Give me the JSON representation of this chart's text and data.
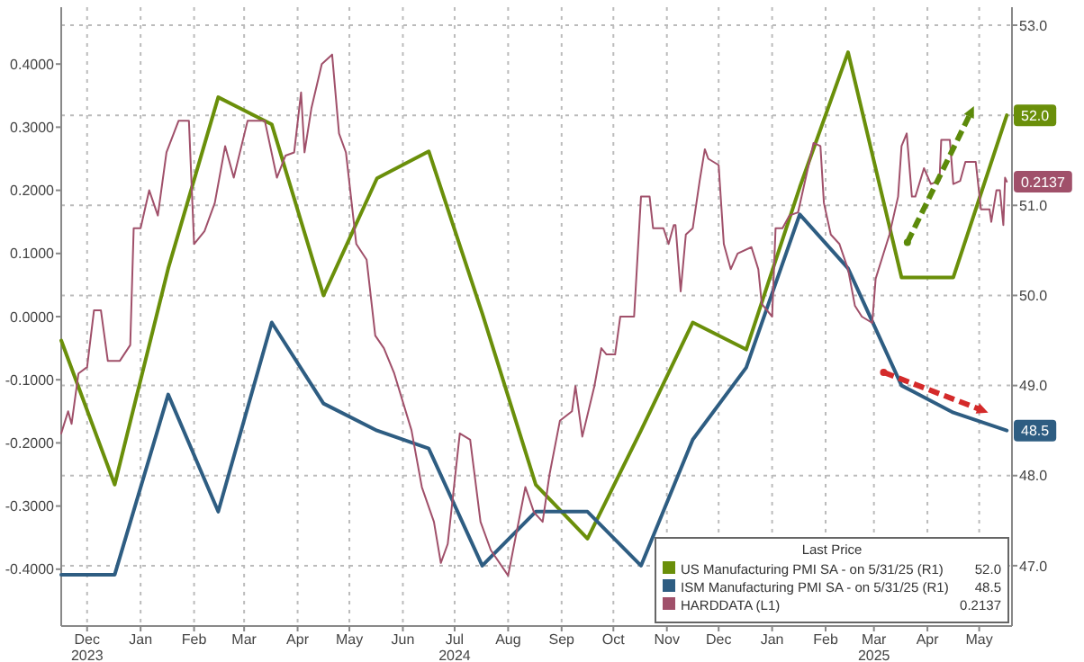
{
  "chart_data": {
    "type": "line",
    "legend_title": "Last Price",
    "annotations": [
      "52.0",
      "48.5",
      "0.2137"
    ],
    "legend": "bottom right",
    "grid": true,
    "marker": "none",
    "line_style": "solid",
    "xlim": [
      "2023-11-30",
      "2025-06-03"
    ],
    "xticks": [
      {
        "value": "2023-12-15",
        "label": "Dec\n2023"
      },
      {
        "value": "2024-01-15",
        "label": "Jan"
      },
      {
        "value": "2024-02-15",
        "label": "Feb"
      },
      {
        "value": "2024-03-15",
        "label": "Mar"
      },
      {
        "value": "2024-04-15",
        "label": "Apr"
      },
      {
        "value": "2024-05-15",
        "label": "May"
      },
      {
        "value": "2024-06-15",
        "label": "Jun"
      },
      {
        "value": "2024-07-15",
        "label": "Jul\n2024"
      },
      {
        "value": "2024-08-15",
        "label": "Aug"
      },
      {
        "value": "2024-09-15",
        "label": "Sep"
      },
      {
        "value": "2024-10-15",
        "label": "Oct"
      },
      {
        "value": "2024-11-15",
        "label": "Nov"
      },
      {
        "value": "2024-12-15",
        "label": "Dec"
      },
      {
        "value": "2025-01-15",
        "label": "Jan"
      },
      {
        "value": "2025-02-15",
        "label": "Feb"
      },
      {
        "value": "2025-03-15",
        "label": "Mar\n2025"
      },
      {
        "value": "2025-04-15",
        "label": "Apr"
      },
      {
        "value": "2025-05-15",
        "label": "May"
      }
    ],
    "ylim": [
      -0.49,
      0.49
    ],
    "yticks": [
      {
        "value": -0.4,
        "label": "-0.4000"
      },
      {
        "value": -0.3,
        "label": "-0.3000"
      },
      {
        "value": -0.2,
        "label": "-0.2000"
      },
      {
        "value": -0.1,
        "label": "-0.1000"
      },
      {
        "value": 0,
        "label": "0.0000"
      },
      {
        "value": 0.1,
        "label": "0.1000"
      },
      {
        "value": 0.2,
        "label": "0.2000"
      },
      {
        "value": 0.3,
        "label": "0.3000"
      },
      {
        "value": 0.4,
        "label": "0.4000"
      }
    ],
    "y2lim": [
      46.33,
      53.2
    ],
    "y2ticks": [
      {
        "value": 47,
        "label": "47.0"
      },
      {
        "value": 48,
        "label": "48.0"
      },
      {
        "value": 49,
        "label": "49.0"
      },
      {
        "value": 50,
        "label": "50.0"
      },
      {
        "value": 51,
        "label": "51.0"
      },
      {
        "value": 52,
        "label": null
      },
      {
        "value": 53,
        "label": "53.0"
      }
    ],
    "series": [
      {
        "name": "US Manufacturing PMI SA - on 5/31/25 (R1)",
        "color": "#6a8f0a",
        "axis": "y2",
        "x": [
          "2023-11-30",
          "2023-12-31",
          "2024-01-31",
          "2024-02-29",
          "2024-03-31",
          "2024-04-30",
          "2024-05-31",
          "2024-06-30",
          "2024-07-31",
          "2024-08-31",
          "2024-09-30",
          "2024-10-31",
          "2024-11-30",
          "2024-12-31",
          "2025-01-31",
          "2025-02-28",
          "2025-03-31",
          "2025-04-30",
          "2025-05-31"
        ],
        "values": [
          49.5,
          47.9,
          50.3,
          52.2,
          51.9,
          50.0,
          51.3,
          51.6,
          49.8,
          47.9,
          47.3,
          48.5,
          49.7,
          49.4,
          51.2,
          52.7,
          50.2,
          50.2,
          52.0
        ],
        "value_labels": [
          null,
          null,
          null,
          null,
          null,
          null,
          null,
          null,
          null,
          null,
          null,
          null,
          null,
          null,
          null,
          null,
          null,
          null,
          "52.0"
        ]
      },
      {
        "name": "ISM Manufacturing PMI SA - on 5/31/25 (R1)",
        "color": "#2e5d82",
        "axis": "y2",
        "x": [
          "2023-11-30",
          "2023-12-31",
          "2024-01-31",
          "2024-02-29",
          "2024-03-31",
          "2024-04-30",
          "2024-05-31",
          "2024-06-30",
          "2024-07-31",
          "2024-08-31",
          "2024-09-30",
          "2024-10-31",
          "2024-11-30",
          "2024-12-31",
          "2025-01-31",
          "2025-02-28",
          "2025-03-31",
          "2025-04-30",
          "2025-05-31"
        ],
        "values": [
          46.9,
          46.9,
          48.9,
          47.6,
          49.7,
          48.8,
          48.5,
          48.3,
          47.0,
          47.6,
          47.6,
          47.0,
          48.4,
          49.2,
          50.9,
          50.3,
          49.0,
          48.7,
          48.5
        ],
        "value_labels": [
          null,
          null,
          null,
          null,
          null,
          null,
          null,
          null,
          null,
          null,
          null,
          null,
          null,
          null,
          null,
          null,
          null,
          null,
          "48.5"
        ]
      },
      {
        "name": "HARDDATA (L1)",
        "color": "#a0506a",
        "x": [
          "2023-11-30",
          "2023-12-04",
          "2023-12-06",
          "2023-12-10",
          "2023-12-15",
          "2023-12-19",
          "2023-12-23",
          "2023-12-27",
          "2024-01-03",
          "2024-01-09",
          "2024-01-11",
          "2024-01-15",
          "2024-01-20",
          "2024-01-25",
          "2024-01-30",
          "2024-02-06",
          "2024-02-12",
          "2024-02-15",
          "2024-02-21",
          "2024-02-27",
          "2024-03-04",
          "2024-03-09",
          "2024-03-17",
          "2024-03-27",
          "2024-04-03",
          "2024-04-08",
          "2024-04-13",
          "2024-04-17",
          "2024-04-19",
          "2024-04-23",
          "2024-04-29",
          "2024-05-05",
          "2024-05-09",
          "2024-05-13",
          "2024-05-19",
          "2024-05-25",
          "2024-05-30",
          "2024-06-04",
          "2024-06-10",
          "2024-06-20",
          "2024-06-26",
          "2024-07-03",
          "2024-07-07",
          "2024-07-11",
          "2024-07-18",
          "2024-07-24",
          "2024-07-30",
          "2024-08-05",
          "2024-08-15",
          "2024-08-25",
          "2024-08-30",
          "2024-09-04",
          "2024-09-08",
          "2024-09-14",
          "2024-09-21",
          "2024-09-23",
          "2024-09-27",
          "2024-10-04",
          "2024-10-08",
          "2024-10-11",
          "2024-10-16",
          "2024-10-19",
          "2024-10-27",
          "2024-10-31",
          "2024-11-05",
          "2024-11-07",
          "2024-11-13",
          "2024-11-16",
          "2024-11-19",
          "2024-11-20",
          "2024-11-23",
          "2024-11-26",
          "2024-11-30",
          "2024-12-04",
          "2024-12-07",
          "2024-12-09",
          "2024-12-15",
          "2024-12-18",
          "2024-12-22",
          "2024-12-26",
          "2025-01-03",
          "2025-01-07",
          "2025-01-09",
          "2025-01-15",
          "2025-01-17",
          "2025-01-21",
          "2025-01-25",
          "2025-01-30",
          "2025-02-08",
          "2025-02-12",
          "2025-02-14",
          "2025-02-18",
          "2025-02-23",
          "2025-02-28",
          "2025-03-04",
          "2025-03-08",
          "2025-03-14",
          "2025-03-16",
          "2025-03-20",
          "2025-03-24",
          "2025-03-29",
          "2025-03-31",
          "2025-04-03",
          "2025-04-06",
          "2025-04-08",
          "2025-04-13",
          "2025-04-17",
          "2025-04-22",
          "2025-04-23",
          "2025-04-28",
          "2025-04-30",
          "2025-05-04",
          "2025-05-07",
          "2025-05-13",
          "2025-05-16",
          "2025-05-21",
          "2025-05-22",
          "2025-05-25",
          "2025-05-27",
          "2025-05-29",
          "2025-05-30",
          "2025-05-31"
        ],
        "values": [
          -0.185,
          -0.15,
          -0.17,
          -0.09,
          -0.08,
          0.01,
          0.01,
          -0.07,
          -0.07,
          -0.045,
          0.14,
          0.14,
          0.2,
          0.16,
          0.26,
          0.31,
          0.31,
          0.115,
          0.135,
          0.18,
          0.27,
          0.22,
          0.31,
          0.31,
          0.22,
          0.255,
          0.26,
          0.355,
          0.26,
          0.33,
          0.4,
          0.415,
          0.29,
          0.26,
          0.115,
          0.09,
          -0.03,
          -0.05,
          -0.09,
          -0.18,
          -0.27,
          -0.325,
          -0.39,
          -0.36,
          -0.185,
          -0.195,
          -0.325,
          -0.37,
          -0.41,
          -0.27,
          -0.31,
          -0.325,
          -0.25,
          -0.165,
          -0.15,
          -0.11,
          -0.19,
          -0.11,
          -0.05,
          -0.06,
          -0.06,
          0.0,
          0.0,
          0.19,
          0.19,
          0.14,
          0.14,
          0.115,
          0.145,
          0.145,
          0.04,
          0.13,
          0.14,
          0.215,
          0.265,
          0.25,
          0.24,
          0.115,
          0.075,
          0.1,
          0.11,
          0.075,
          0.02,
          0.0,
          0.14,
          0.14,
          0.16,
          0.165,
          0.275,
          0.27,
          0.18,
          0.13,
          0.115,
          0.075,
          0.017,
          0.0,
          -0.01,
          0.06,
          0.095,
          0.13,
          0.19,
          0.27,
          0.29,
          0.19,
          0.19,
          0.235,
          0.21,
          0.215,
          0.28,
          0.28,
          0.21,
          0.215,
          0.245,
          0.245,
          0.17,
          0.17,
          0.15,
          0.2,
          0.2,
          0.145,
          0.22,
          0.2137
        ],
        "value_labels": [
          null,
          null,
          null,
          null,
          null,
          null,
          null,
          null,
          null,
          null,
          null,
          null,
          null,
          null,
          null,
          null,
          null,
          null,
          null,
          null,
          null,
          null,
          null,
          null,
          null,
          null,
          null,
          null,
          null,
          null,
          null,
          null,
          null,
          null,
          null,
          null,
          null,
          null,
          null,
          null,
          null,
          null,
          null,
          null,
          null,
          null,
          null,
          null,
          null,
          null,
          null,
          null,
          null,
          null,
          null,
          null,
          null,
          null,
          null,
          null,
          null,
          null,
          null,
          null,
          null,
          null,
          null,
          null,
          null,
          null,
          null,
          null,
          null,
          null,
          null,
          null,
          null,
          null,
          null,
          null,
          null,
          null,
          null,
          null,
          null,
          null,
          null,
          null,
          null,
          null,
          null,
          null,
          null,
          null,
          null,
          null,
          null,
          null,
          null,
          null,
          null,
          null,
          null,
          null,
          null,
          null,
          null,
          null,
          null,
          null,
          null,
          null,
          null,
          null,
          null,
          null,
          null,
          null,
          null,
          null,
          null,
          "0.2137"
        ]
      }
    ]
  }
}
